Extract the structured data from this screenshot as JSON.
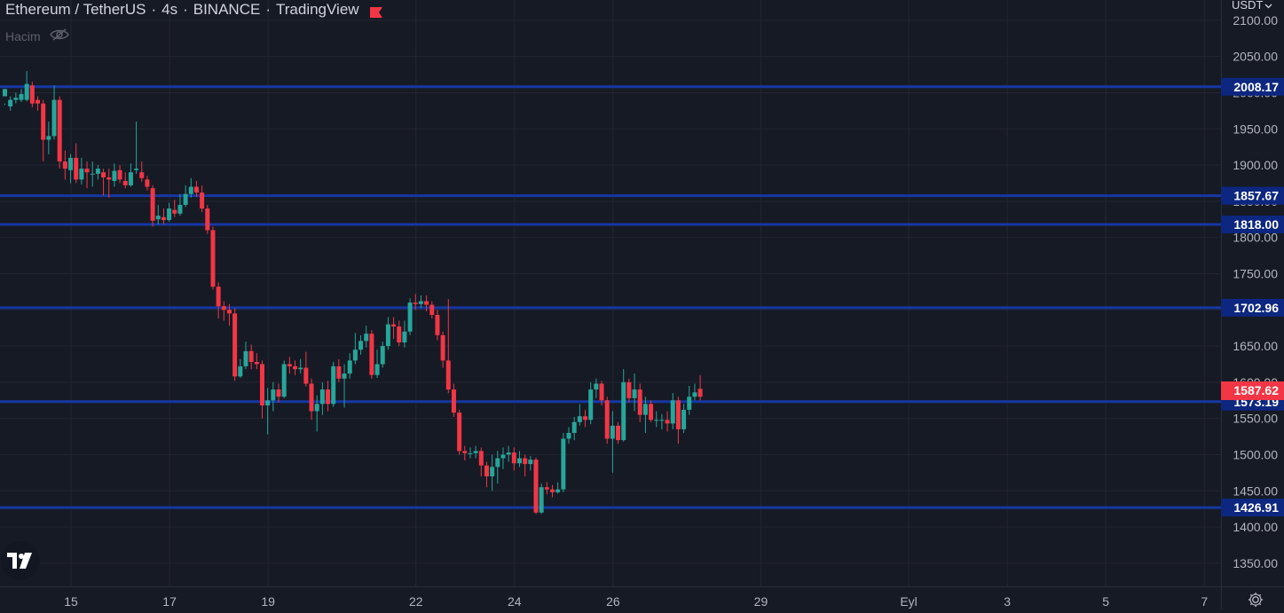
{
  "header": {
    "symbol": "Ethereum / TetherUS",
    "interval": "4s",
    "exchange": "BINANCE",
    "source": "TradingView"
  },
  "volume_indicator": {
    "label": "Hacim",
    "icon": "eye-crossed-icon"
  },
  "price_scale": {
    "currency": "USDT"
  },
  "colors": {
    "background": "#161a25",
    "grid": "#232632",
    "up": "#26a69a",
    "down": "#f23645",
    "level_line": "#1637a3",
    "label_bg": "#0d2780",
    "last_price_bg": "#f23645",
    "axis_text": "#b2b5be",
    "brand_flag": "#f23645"
  },
  "chart_data": {
    "type": "candlestick",
    "y_ticks": [
      1350,
      1400,
      1450,
      1500,
      1550,
      1600,
      1650,
      1700,
      1750,
      1800,
      1850,
      1900,
      1950,
      2000,
      2050,
      2100
    ],
    "y_tick_labels": [
      "1350.00",
      "1400.00",
      "1450.00",
      "1500.00",
      "1550.00",
      "1600.00",
      "1650.00",
      "1700.00",
      "1750.00",
      "1800.00",
      "1850.00",
      "1900.00",
      "1950.00",
      "2000.00",
      "2050.00",
      "2100.00"
    ],
    "ylim": [
      1318,
      2128
    ],
    "x_ticks": [
      {
        "label": "15",
        "bar": 12
      },
      {
        "label": "17",
        "bar": 30
      },
      {
        "label": "19",
        "bar": 48
      },
      {
        "label": "22",
        "bar": 75
      },
      {
        "label": "24",
        "bar": 93
      },
      {
        "label": "26",
        "bar": 111
      },
      {
        "label": "29",
        "bar": 138
      },
      {
        "label": "Eyl",
        "bar": 165
      },
      {
        "label": "3",
        "bar": 183
      },
      {
        "label": "5",
        "bar": 201
      },
      {
        "label": "7",
        "bar": 219
      }
    ],
    "bar_range": [
      0,
      222
    ],
    "horizontal_levels": [
      {
        "value": 2008.17,
        "label": "2008.17"
      },
      {
        "value": 1857.67,
        "label": "1857.67"
      },
      {
        "value": 1818.0,
        "label": "1818.00"
      },
      {
        "value": 1702.96,
        "label": "1702.96"
      },
      {
        "value": 1573.19,
        "label": "1573.19"
      },
      {
        "value": 1426.91,
        "label": "1426.91"
      }
    ],
    "last_price": {
      "value": 1587.62,
      "label": "1587.62"
    },
    "candles": [
      [
        1995,
        2005,
        1985,
        1983
      ],
      [
        1981,
        1990,
        1995,
        1975
      ],
      [
        1990,
        1993,
        2000,
        1985
      ],
      [
        1990,
        1998,
        2005,
        1987
      ],
      [
        1990,
        2012,
        2030,
        1988
      ],
      [
        2010,
        1985,
        2015,
        1980
      ],
      [
        1990,
        1985,
        1995,
        1975
      ],
      [
        1985,
        1935,
        1990,
        1905
      ],
      [
        1935,
        1940,
        1960,
        1915
      ],
      [
        1940,
        1990,
        2010,
        1935
      ],
      [
        1990,
        1905,
        1995,
        1895
      ],
      [
        1905,
        1895,
        1920,
        1880
      ],
      [
        1893,
        1910,
        1915,
        1875
      ],
      [
        1910,
        1880,
        1930,
        1875
      ],
      [
        1880,
        1895,
        1910,
        1873
      ],
      [
        1895,
        1890,
        1905,
        1868
      ],
      [
        1887,
        1888,
        1905,
        1870
      ],
      [
        1888,
        1895,
        1900,
        1880
      ],
      [
        1890,
        1883,
        1895,
        1858
      ],
      [
        1883,
        1880,
        1895,
        1855
      ],
      [
        1878,
        1892,
        1902,
        1870
      ],
      [
        1893,
        1880,
        1900,
        1875
      ],
      [
        1878,
        1872,
        1890,
        1868
      ],
      [
        1872,
        1890,
        1902,
        1870
      ],
      [
        1893,
        1895,
        1960,
        1888
      ],
      [
        1890,
        1882,
        1905,
        1877
      ],
      [
        1880,
        1870,
        1885,
        1865
      ],
      [
        1868,
        1823,
        1872,
        1815
      ],
      [
        1825,
        1830,
        1845,
        1818
      ],
      [
        1828,
        1824,
        1840,
        1818
      ],
      [
        1824,
        1840,
        1848,
        1822
      ],
      [
        1838,
        1833,
        1852,
        1828
      ],
      [
        1833,
        1845,
        1860,
        1830
      ],
      [
        1845,
        1860,
        1872,
        1842
      ],
      [
        1860,
        1870,
        1882,
        1855
      ],
      [
        1870,
        1862,
        1878,
        1856
      ],
      [
        1862,
        1840,
        1872,
        1835
      ],
      [
        1840,
        1810,
        1845,
        1805
      ],
      [
        1810,
        1732,
        1815,
        1728
      ],
      [
        1732,
        1705,
        1738,
        1688
      ],
      [
        1705,
        1700,
        1712,
        1685
      ],
      [
        1700,
        1695,
        1708,
        1678
      ],
      [
        1695,
        1608,
        1702,
        1602
      ],
      [
        1608,
        1622,
        1632,
        1606
      ],
      [
        1622,
        1643,
        1656,
        1618
      ],
      [
        1643,
        1628,
        1652,
        1618
      ],
      [
        1628,
        1625,
        1640,
        1618
      ],
      [
        1625,
        1568,
        1630,
        1550
      ],
      [
        1568,
        1575,
        1592,
        1528
      ],
      [
        1575,
        1590,
        1600,
        1560
      ],
      [
        1590,
        1580,
        1598,
        1572
      ],
      [
        1580,
        1625,
        1630,
        1578
      ],
      [
        1625,
        1622,
        1635,
        1612
      ],
      [
        1622,
        1618,
        1630,
        1610
      ],
      [
        1618,
        1620,
        1632,
        1612
      ],
      [
        1620,
        1598,
        1642,
        1594
      ],
      [
        1598,
        1560,
        1605,
        1548
      ],
      [
        1560,
        1570,
        1582,
        1532
      ],
      [
        1570,
        1590,
        1600,
        1555
      ],
      [
        1590,
        1570,
        1602,
        1560
      ],
      [
        1570,
        1622,
        1628,
        1566
      ],
      [
        1622,
        1605,
        1632,
        1600
      ],
      [
        1605,
        1612,
        1625,
        1565
      ],
      [
        1612,
        1630,
        1640,
        1605
      ],
      [
        1630,
        1645,
        1668,
        1625
      ],
      [
        1645,
        1657,
        1665,
        1638
      ],
      [
        1657,
        1667,
        1678,
        1648
      ],
      [
        1667,
        1610,
        1672,
        1605
      ],
      [
        1610,
        1625,
        1645,
        1606
      ],
      [
        1625,
        1650,
        1656,
        1620
      ],
      [
        1650,
        1680,
        1690,
        1645
      ],
      [
        1680,
        1677,
        1690,
        1660
      ],
      [
        1677,
        1655,
        1685,
        1650
      ],
      [
        1655,
        1670,
        1685,
        1648
      ],
      [
        1670,
        1710,
        1716,
        1665
      ],
      [
        1710,
        1708,
        1722,
        1700
      ],
      [
        1708,
        1712,
        1720,
        1702
      ],
      [
        1712,
        1707,
        1720,
        1698
      ],
      [
        1707,
        1693,
        1712,
        1688
      ],
      [
        1693,
        1665,
        1700,
        1658
      ],
      [
        1665,
        1630,
        1670,
        1620
      ],
      [
        1630,
        1590,
        1715,
        1585
      ],
      [
        1590,
        1558,
        1598,
        1552
      ],
      [
        1558,
        1505,
        1562,
        1500
      ],
      [
        1505,
        1502,
        1512,
        1492
      ],
      [
        1502,
        1502,
        1510,
        1495
      ],
      [
        1502,
        1505,
        1512,
        1495
      ],
      [
        1505,
        1485,
        1510,
        1470
      ],
      [
        1485,
        1470,
        1490,
        1455
      ],
      [
        1470,
        1483,
        1500,
        1450
      ],
      [
        1483,
        1495,
        1505,
        1460
      ],
      [
        1495,
        1500,
        1510,
        1480
      ],
      [
        1500,
        1503,
        1512,
        1490
      ],
      [
        1503,
        1488,
        1510,
        1478
      ],
      [
        1488,
        1495,
        1505,
        1483
      ],
      [
        1495,
        1487,
        1500,
        1470
      ],
      [
        1487,
        1493,
        1498,
        1478
      ],
      [
        1493,
        1420,
        1496,
        1418
      ],
      [
        1420,
        1455,
        1460,
        1418
      ],
      [
        1455,
        1452,
        1462,
        1445
      ],
      [
        1452,
        1448,
        1458,
        1441
      ],
      [
        1448,
        1452,
        1462,
        1446
      ],
      [
        1452,
        1522,
        1530,
        1448
      ],
      [
        1522,
        1530,
        1538,
        1515
      ],
      [
        1530,
        1545,
        1552,
        1520
      ],
      [
        1545,
        1553,
        1570,
        1540
      ],
      [
        1553,
        1548,
        1562,
        1538
      ],
      [
        1548,
        1590,
        1600,
        1542
      ],
      [
        1590,
        1598,
        1605,
        1578
      ],
      [
        1598,
        1575,
        1602,
        1568
      ],
      [
        1575,
        1522,
        1580,
        1515
      ],
      [
        1522,
        1540,
        1560,
        1475
      ],
      [
        1540,
        1520,
        1545,
        1515
      ],
      [
        1520,
        1600,
        1618,
        1518
      ],
      [
        1600,
        1578,
        1605,
        1572
      ],
      [
        1578,
        1590,
        1612,
        1560
      ],
      [
        1590,
        1555,
        1598,
        1545
      ],
      [
        1555,
        1570,
        1580,
        1530
      ],
      [
        1570,
        1548,
        1575,
        1545
      ],
      [
        1548,
        1548,
        1560,
        1538
      ],
      [
        1548,
        1548,
        1556,
        1535
      ],
      [
        1548,
        1543,
        1560,
        1532
      ],
      [
        1543,
        1575,
        1585,
        1535
      ],
      [
        1575,
        1535,
        1580,
        1515
      ],
      [
        1535,
        1562,
        1570,
        1530
      ],
      [
        1562,
        1580,
        1595,
        1555
      ],
      [
        1580,
        1586,
        1598,
        1575
      ],
      [
        1591,
        1580,
        1610,
        1575
      ]
    ]
  }
}
